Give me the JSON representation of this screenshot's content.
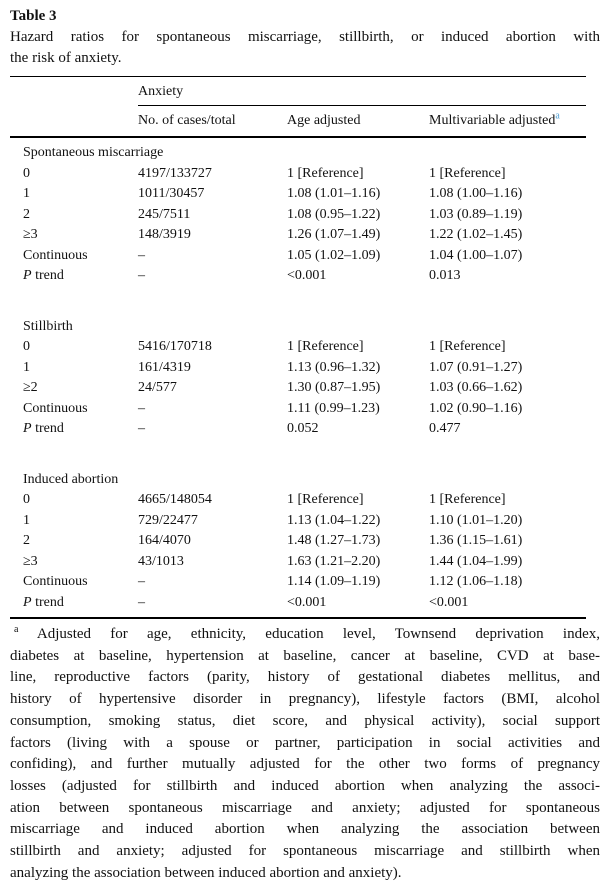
{
  "table_label": "Table 3",
  "caption_lines": [
    "Hazard ratios for spontaneous miscarriage, stillbirth, or induced abortion with",
    "the risk of anxiety."
  ],
  "header": {
    "group": "Anxiety",
    "columns": [
      "No. of cases/total",
      "Age adjusted",
      "Multivariable adjusted"
    ],
    "superscript": "a"
  },
  "colors": {
    "superscript_a": "#4f9fd4"
  },
  "sections": [
    {
      "name": "Spontaneous miscarriage",
      "rows": [
        {
          "label": "0",
          "cases_total": "4197/133727",
          "age_adjusted": "1 [Reference]",
          "multivariable_adjusted": "1 [Reference]"
        },
        {
          "label": "1",
          "cases_total": "1011/30457",
          "age_adjusted": "1.08 (1.01–1.16)",
          "multivariable_adjusted": "1.08 (1.00–1.16)"
        },
        {
          "label": "2",
          "cases_total": "245/7511",
          "age_adjusted": "1.08 (0.95–1.22)",
          "multivariable_adjusted": "1.03 (0.89–1.19)"
        },
        {
          "label": "≥3",
          "cases_total": "148/3919",
          "age_adjusted": "1.26 (1.07–1.49)",
          "multivariable_adjusted": "1.22 (1.02–1.45)"
        },
        {
          "label": "Continuous",
          "cases_total": "–",
          "age_adjusted": "1.05 (1.02–1.09)",
          "multivariable_adjusted": "1.04 (1.00–1.07)"
        },
        {
          "label": "P trend",
          "p_italic": true,
          "cases_total": "–",
          "age_adjusted": "<0.001",
          "multivariable_adjusted": "0.013"
        }
      ]
    },
    {
      "name": "Stillbirth",
      "rows": [
        {
          "label": "0",
          "cases_total": "5416/170718",
          "age_adjusted": "1 [Reference]",
          "multivariable_adjusted": "1 [Reference]"
        },
        {
          "label": "1",
          "cases_total": "161/4319",
          "age_adjusted": "1.13 (0.96–1.32)",
          "multivariable_adjusted": "1.07 (0.91–1.27)"
        },
        {
          "label": "≥2",
          "cases_total": "24/577",
          "age_adjusted": "1.30 (0.87–1.95)",
          "multivariable_adjusted": "1.03 (0.66–1.62)"
        },
        {
          "label": "Continuous",
          "cases_total": "–",
          "age_adjusted": "1.11 (0.99–1.23)",
          "multivariable_adjusted": "1.02 (0.90–1.16)"
        },
        {
          "label": "P trend",
          "p_italic": true,
          "cases_total": "–",
          "age_adjusted": "0.052",
          "multivariable_adjusted": "0.477"
        }
      ]
    },
    {
      "name": "Induced abortion",
      "rows": [
        {
          "label": "0",
          "cases_total": "4665/148054",
          "age_adjusted": "1 [Reference]",
          "multivariable_adjusted": "1 [Reference]"
        },
        {
          "label": "1",
          "cases_total": "729/22477",
          "age_adjusted": "1.13 (1.04–1.22)",
          "multivariable_adjusted": "1.10 (1.01–1.20)"
        },
        {
          "label": "2",
          "cases_total": "164/4070",
          "age_adjusted": "1.48 (1.27–1.73)",
          "multivariable_adjusted": "1.36 (1.15–1.61)"
        },
        {
          "label": "≥3",
          "cases_total": "43/1013",
          "age_adjusted": "1.63 (1.21–2.20)",
          "multivariable_adjusted": "1.44 (1.04–1.99)"
        },
        {
          "label": "Continuous",
          "cases_total": "–",
          "age_adjusted": "1.14 (1.09–1.19)",
          "multivariable_adjusted": "1.12 (1.06–1.18)"
        },
        {
          "label": "P trend",
          "p_italic": true,
          "cases_total": "–",
          "age_adjusted": "<0.001",
          "multivariable_adjusted": "<0.001"
        }
      ]
    }
  ],
  "footnote": {
    "marker": "a",
    "lines": [
      "Adjusted for age, ethnicity, education level, Townsend deprivation index,",
      "diabetes at baseline, hypertension at baseline, cancer at baseline, CVD at base-",
      "line, reproductive factors (parity, history of gestational diabetes mellitus, and",
      "history of hypertensive disorder in pregnancy), lifestyle factors (BMI, alcohol",
      "consumption, smoking status, diet score, and physical activity), social support",
      "factors (living with a spouse or partner, participation in social activities and",
      "confiding), and further mutually adjusted for the other two forms of pregnancy",
      "losses (adjusted for stillbirth and induced abortion when analyzing the associ-",
      "ation between spontaneous miscarriage and anxiety; adjusted for spontaneous",
      "miscarriage and induced abortion when analyzing the association between",
      "stillbirth and anxiety; adjusted for spontaneous miscarriage and stillbirth when",
      "analyzing the association between induced abortion and anxiety)."
    ]
  }
}
